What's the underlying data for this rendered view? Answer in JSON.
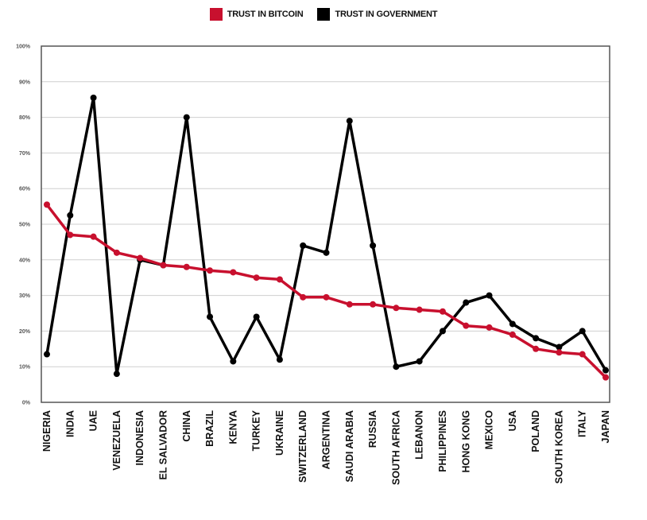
{
  "chart_data": {
    "type": "line",
    "title": "",
    "xlabel": "",
    "ylabel": "",
    "ylim": [
      0,
      100
    ],
    "y_ticks": [
      "0%",
      "10%",
      "20%",
      "30%",
      "40%",
      "50%",
      "60%",
      "70%",
      "80%",
      "90%",
      "100%"
    ],
    "grid": true,
    "legend_position": "top-center",
    "categories": [
      "NIGERIA",
      "INDIA",
      "UAE",
      "VENEZUELA",
      "INDONESIA",
      "EL SALVADOR",
      "CHINA",
      "BRAZIL",
      "KENYA",
      "TURKEY",
      "UKRAINE",
      "SWITZERLAND",
      "ARGENTINA",
      "SAUDI ARABIA",
      "RUSSIA",
      "SOUTH AFRICA",
      "LEBANON",
      "PHILIPPINES",
      "HONG KONG",
      "MEXICO",
      "USA",
      "POLAND",
      "SOUTH KOREA",
      "ITALY",
      "JAPAN"
    ],
    "series": [
      {
        "name": "TRUST IN BITCOIN",
        "color": "#c8102e",
        "values": [
          55.5,
          47,
          46.5,
          42,
          40.5,
          38.5,
          38,
          37,
          36.5,
          35,
          34.5,
          29.5,
          29.5,
          27.5,
          27.5,
          26.5,
          26,
          25.5,
          21.5,
          21,
          19,
          15,
          14,
          13.5,
          7
        ]
      },
      {
        "name": "TRUST IN GOVERNMENT",
        "color": "#000000",
        "values": [
          13.5,
          52.5,
          85.5,
          8,
          40,
          38.5,
          80,
          24,
          11.5,
          24,
          12,
          44,
          42,
          79,
          44,
          10,
          11.5,
          20,
          28,
          30,
          22,
          18,
          15.5,
          20,
          9
        ]
      }
    ]
  }
}
